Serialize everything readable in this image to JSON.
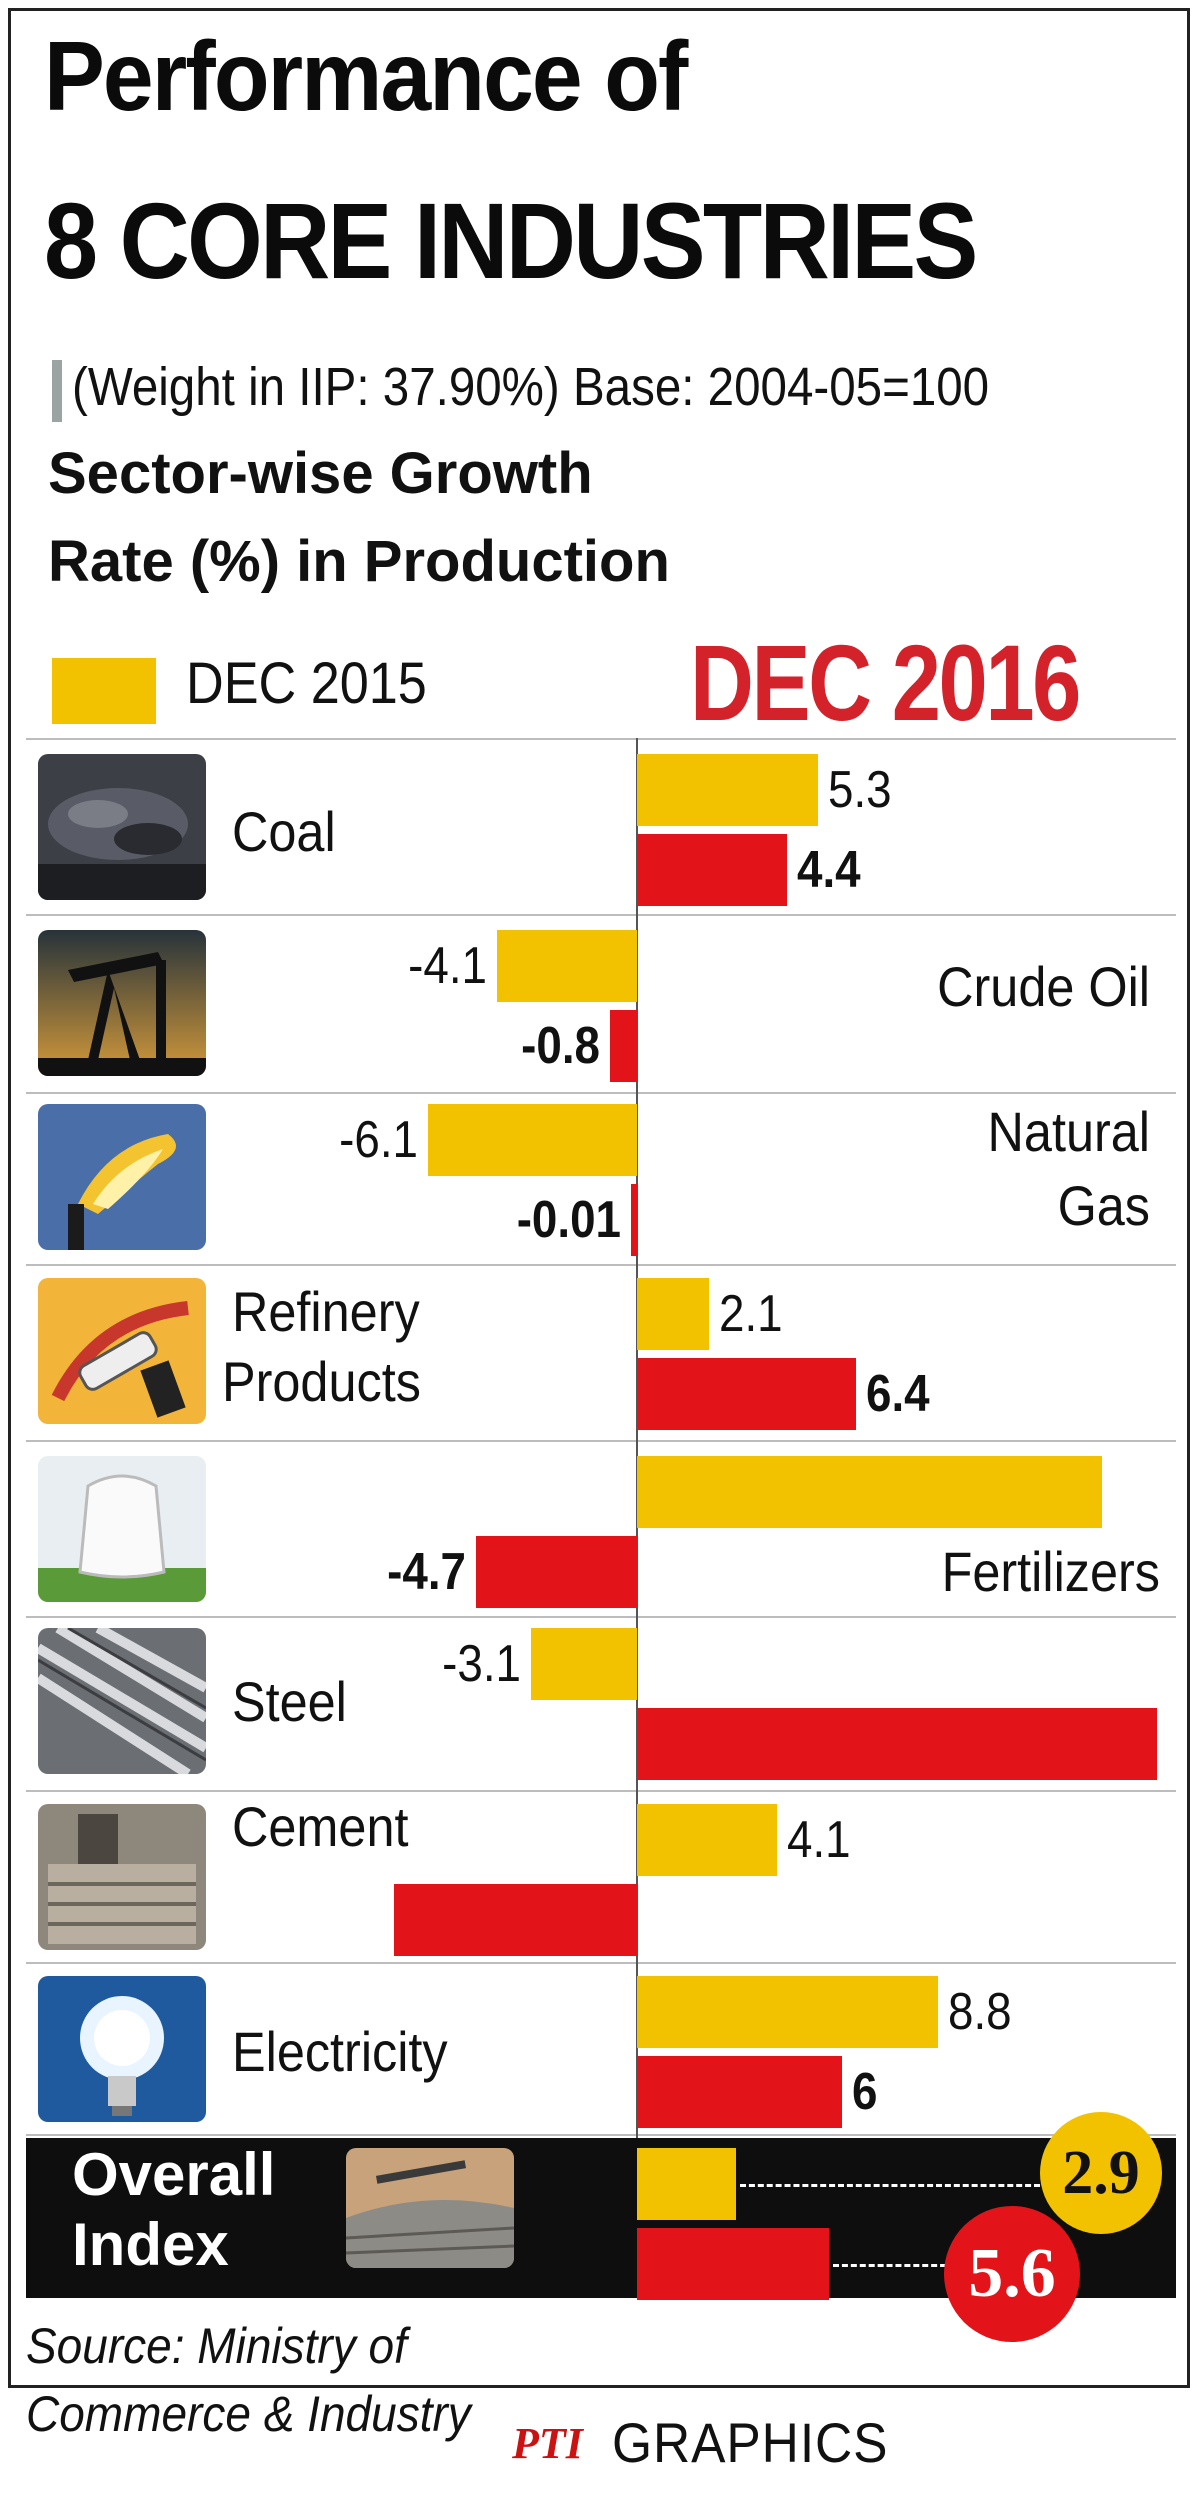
{
  "header": {
    "title_line1": "Performance of",
    "title_line2": "8 CORE INDUSTRIES",
    "subtitle": "(Weight in IIP: 37.90%) Base: 2004-05=100",
    "heading_line1": "Sector-wise Growth",
    "heading_line2": "Rate (%) in Production"
  },
  "legend": {
    "series1": "DEC 2015",
    "series2": "DEC 2016"
  },
  "colors": {
    "dec2015": "#F2C200",
    "dec2016": "#E2141A",
    "title2016": "#D3222A",
    "overall_band": "#0e0e0e"
  },
  "chart_data": {
    "type": "bar",
    "orientation": "horizontal",
    "title": "Sector-wise Growth Rate (%) in Production",
    "categories": [
      "Coal",
      "Crude Oil",
      "Natural Gas",
      "Refinery Products",
      "Fertilizers",
      "Steel",
      "Cement",
      "Electricity",
      "Overall Index"
    ],
    "series": [
      {
        "name": "DEC 2015",
        "values": [
          5.3,
          -4.1,
          -6.1,
          2.1,
          13.6,
          -3.1,
          4.1,
          8.8,
          2.9
        ]
      },
      {
        "name": "DEC 2016",
        "values": [
          4.4,
          -0.8,
          -0.01,
          6.4,
          -4.7,
          15.2,
          -7.1,
          6,
          5.6
        ]
      }
    ],
    "printed_labels": {
      "DEC 2015": [
        "5.3",
        "-4.1",
        "-6.1",
        "2.1",
        "",
        "-3.1",
        "4.1",
        "8.8",
        "2.9"
      ],
      "DEC 2016": [
        "4.4",
        "-0.8",
        "-0.01",
        "6.4",
        "-4.7",
        "",
        "",
        "6",
        "5.6"
      ]
    },
    "icons": [
      "coal-icon",
      "oil-pump-icon",
      "gas-flare-icon",
      "fuel-nozzle-icon",
      "fertilizer-sack-icon",
      "steel-rods-icon",
      "cement-bags-icon",
      "light-bulb-icon",
      "overall-index-icon"
    ]
  },
  "categories_display": {
    "coal": "Coal",
    "crude_oil": "Crude Oil",
    "natural_gas_1": "Natural",
    "natural_gas_2": "Gas",
    "refinery_1": "Refinery",
    "refinery_2": "Products",
    "fertilizers": "Fertilizers",
    "steel": "Steel",
    "cement": "Cement",
    "electricity": "Electricity",
    "overall_1": "Overall",
    "overall_2": "Index"
  },
  "footer": {
    "source_line1": "Source: Ministry of",
    "source_line2": "Commerce & Industry",
    "agency": "PTI",
    "graphics": "GRAPHICS"
  }
}
